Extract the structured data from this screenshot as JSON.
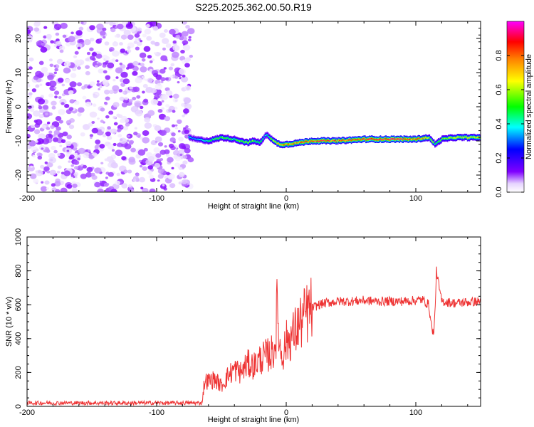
{
  "title": "S225.2025.362.00.50.R19",
  "chart_data": [
    {
      "type": "heatmap",
      "xlabel": "Height of straight line (km)",
      "ylabel": "Frequency (Hz)",
      "xlim": [
        -200,
        150
      ],
      "ylim": [
        -25,
        25
      ],
      "xticks": [
        -200,
        -100,
        0,
        100
      ],
      "yticks": [
        -20,
        -10,
        0,
        10,
        20
      ],
      "colorbar": {
        "label": "Normalized spectral amplitude",
        "range": [
          0,
          1
        ],
        "ticks": [
          0.0,
          0.2,
          0.4,
          0.6,
          0.8
        ],
        "tick_labels": [
          "0.0",
          "0.2",
          "0.4",
          "0.6",
          "0.8"
        ],
        "colormap": [
          "#ffffff",
          "#8000ff",
          "#0000ff",
          "#00ffff",
          "#00ff00",
          "#ffff00",
          "#ff8000",
          "#ff0000",
          "#ff00ff"
        ]
      },
      "noise_region": {
        "x": [
          -200,
          -73
        ],
        "y": [
          -25,
          25
        ],
        "amplitude": 0.2
      },
      "signal_trace": {
        "x": [
          -75,
          -70,
          -60,
          -50,
          -40,
          -30,
          -25,
          -20,
          -15,
          -10,
          -5,
          0,
          10,
          20,
          30,
          40,
          60,
          80,
          100,
          110,
          115,
          120,
          130,
          140,
          150
        ],
        "frequency": [
          -9,
          -9.5,
          -10,
          -9,
          -9.5,
          -10.5,
          -10,
          -10.5,
          -8,
          -10,
          -11,
          -11,
          -10.5,
          -10,
          -10,
          -10,
          -9.5,
          -9.5,
          -9.5,
          -9,
          -11,
          -9.5,
          -9,
          -9,
          -9
        ],
        "peak_amplitude": [
          0.4,
          0.35,
          0.45,
          0.55,
          0.5,
          0.6,
          0.55,
          0.5,
          0.4,
          0.65,
          0.75,
          0.8,
          0.85,
          0.9,
          0.9,
          0.85,
          0.9,
          0.95,
          0.9,
          0.7,
          0.5,
          0.6,
          0.65,
          0.7,
          0.7
        ]
      }
    },
    {
      "type": "line",
      "xlabel": "Height of straight line (km)",
      "ylabel": "SNR (10 * v/v)",
      "xlim": [
        -200,
        150
      ],
      "ylim": [
        0,
        1000
      ],
      "xticks": [
        -200,
        -100,
        0,
        100
      ],
      "yticks": [
        0,
        200,
        400,
        600,
        800,
        1000
      ],
      "color": "#ee3333",
      "series": [
        {
          "x": [
            -200,
            -150,
            -100,
            -70,
            -65,
            -63,
            -60,
            -55,
            -50,
            -45,
            -40,
            -35,
            -30,
            -25,
            -20,
            -15,
            -10,
            -8,
            -7,
            -5,
            -3,
            0,
            5,
            10,
            15,
            20,
            25,
            30,
            40,
            50,
            60,
            70,
            80,
            90,
            100,
            105,
            110,
            112,
            114,
            116,
            118,
            120,
            130,
            140,
            150
          ],
          "y": [
            20,
            20,
            20,
            20,
            20,
            150,
            150,
            160,
            120,
            180,
            220,
            200,
            250,
            240,
            280,
            300,
            320,
            400,
            600,
            350,
            300,
            380,
            420,
            480,
            540,
            580,
            600,
            610,
            620,
            620,
            625,
            620,
            620,
            620,
            625,
            630,
            600,
            480,
            420,
            800,
            700,
            620,
            610,
            615,
            620
          ]
        }
      ]
    }
  ]
}
